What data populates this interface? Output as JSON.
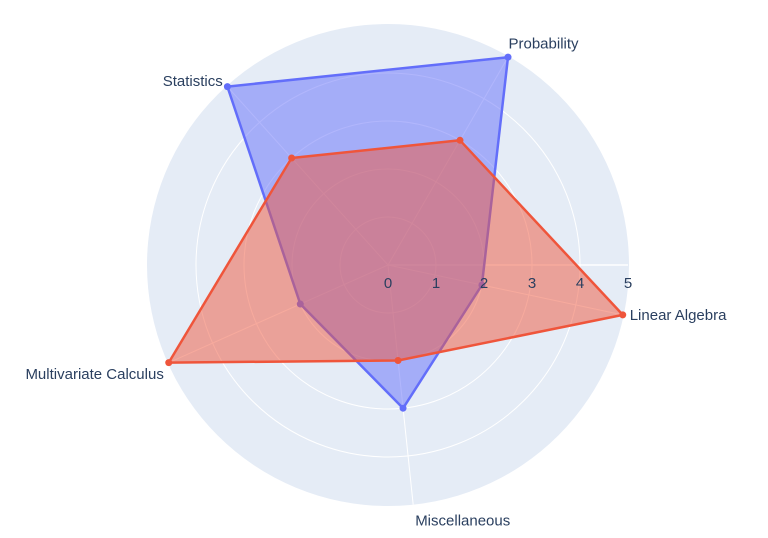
{
  "chart_data": {
    "type": "radar",
    "title": "",
    "categories": [
      "Linear Algebra",
      "Probability",
      "Statistics",
      "Multivariate Calculus",
      "Miscellaneous"
    ],
    "radial_range": [
      0,
      5
    ],
    "radial_ticks": [
      "0",
      "1",
      "2",
      "3",
      "4",
      "5"
    ],
    "grid": true,
    "series": [
      {
        "values": [
          2,
          5,
          5,
          2,
          3
        ],
        "color": "#636efa"
      },
      {
        "values": [
          5,
          3,
          3,
          5,
          2
        ],
        "color": "#ef553b"
      }
    ],
    "background_color": "#e5ecf6"
  }
}
